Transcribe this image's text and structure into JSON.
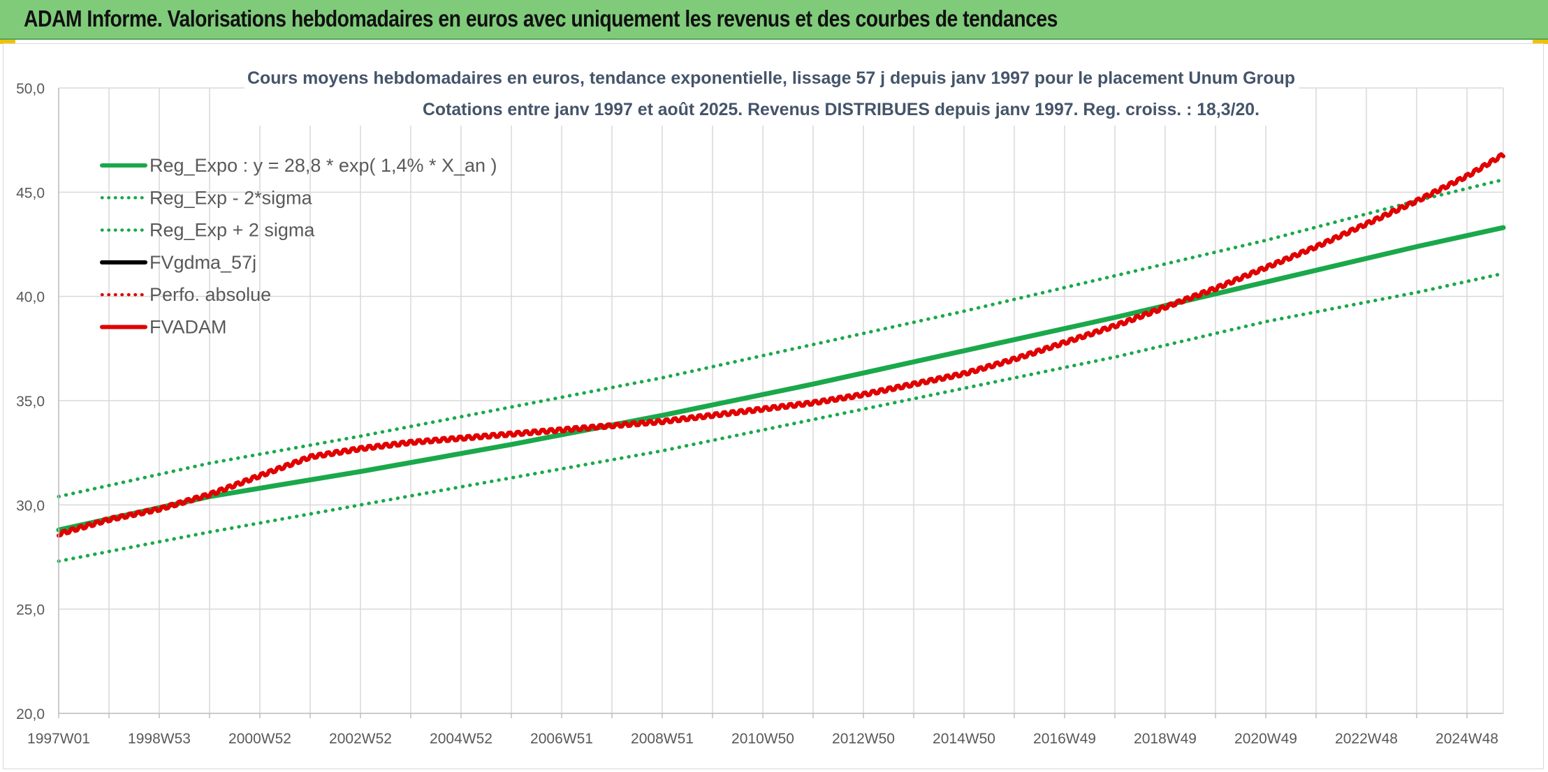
{
  "header": {
    "title": "ADAM Informe. Valorisations hebdomadaires en euros avec uniquement les revenus et des courbes de tendances"
  },
  "chart_data": {
    "type": "line",
    "title": "Cours moyens hebdomadaires en euros, tendance exponentielle, lissage 57 j depuis janv 1997 pour le placement Unum Group",
    "subtitle": "Cotations entre janv 1997 et août 2025. Revenus DISTRIBUES depuis janv 1997. Reg. croiss. : 18,3/20.",
    "xlabel": "",
    "ylabel": "",
    "ylim": [
      20,
      50
    ],
    "yticks": [
      "20,0",
      "25,0",
      "30,0",
      "35,0",
      "40,0",
      "45,0",
      "50,0"
    ],
    "x_range": [
      1997.0,
      2025.7
    ],
    "xtick_labels": [
      "1997W01",
      "1998W53",
      "2000W52",
      "2002W52",
      "2004W52",
      "2006W51",
      "2008W51",
      "2010W50",
      "2012W50",
      "2014W50",
      "2016W49",
      "2018W49",
      "2020W49",
      "2022W48",
      "2024W48"
    ],
    "grid": true,
    "legend_position": "top-left",
    "legend": [
      {
        "label": "Reg_Expo : y = 28,8 * exp( 1,4% *  X_an )",
        "color": "#1aa84b",
        "style": "solid"
      },
      {
        "label": "Reg_Exp - 2*sigma",
        "color": "#1aa84b",
        "style": "dotted"
      },
      {
        "label": "Reg_Exp + 2 sigma",
        "color": "#1aa84b",
        "style": "dotted"
      },
      {
        "label": "FVgdma_57j",
        "color": "#000000",
        "style": "solid"
      },
      {
        "label": "Perfo. absolue",
        "color": "#e00000",
        "style": "dotted"
      },
      {
        "label": "FVADAM",
        "color": "#e00000",
        "style": "solid"
      }
    ],
    "series": [
      {
        "name": "Reg_Expo : y = 28,8 * exp( 1,4% *  X_an )",
        "color": "#1aa84b",
        "x": [
          1997,
          2000,
          2003,
          2006,
          2009,
          2012,
          2015,
          2018,
          2021,
          2024,
          2025.7
        ],
        "y": [
          28.8,
          30.4,
          31.6,
          32.9,
          34.3,
          35.8,
          37.4,
          39.0,
          40.7,
          42.4,
          43.3
        ]
      },
      {
        "name": "Reg_Exp - 2*sigma",
        "color": "#1aa84b",
        "x": [
          1997,
          2000,
          2003,
          2006,
          2009,
          2012,
          2015,
          2018,
          2021,
          2024,
          2025.7
        ],
        "y": [
          27.3,
          28.7,
          30.0,
          31.3,
          32.6,
          34.1,
          35.6,
          37.1,
          38.8,
          40.2,
          41.1
        ]
      },
      {
        "name": "Reg_Exp + 2 sigma",
        "color": "#1aa84b",
        "x": [
          1997,
          2000,
          2003,
          2006,
          2009,
          2012,
          2015,
          2018,
          2021,
          2024,
          2025.7
        ],
        "y": [
          30.4,
          32.0,
          33.3,
          34.7,
          36.1,
          37.7,
          39.3,
          41.0,
          42.7,
          44.6,
          45.6
        ]
      },
      {
        "name": "FVADAM",
        "color": "#e00000",
        "x": [
          1997,
          1998,
          1999,
          2000,
          2001,
          2002,
          2003,
          2004,
          2005,
          2006,
          2007,
          2008,
          2009,
          2010,
          2011,
          2012,
          2013,
          2014,
          2015,
          2016,
          2017,
          2018,
          2019,
          2020,
          2021,
          2022,
          2023,
          2024,
          2025,
          2025.7
        ],
        "y": [
          28.6,
          29.3,
          29.8,
          30.5,
          31.4,
          32.3,
          32.7,
          33.0,
          33.2,
          33.4,
          33.6,
          33.8,
          34.0,
          34.3,
          34.6,
          34.9,
          35.3,
          35.8,
          36.3,
          37.0,
          37.8,
          38.6,
          39.5,
          40.4,
          41.4,
          42.4,
          43.5,
          44.6,
          45.8,
          46.8
        ]
      }
    ]
  }
}
